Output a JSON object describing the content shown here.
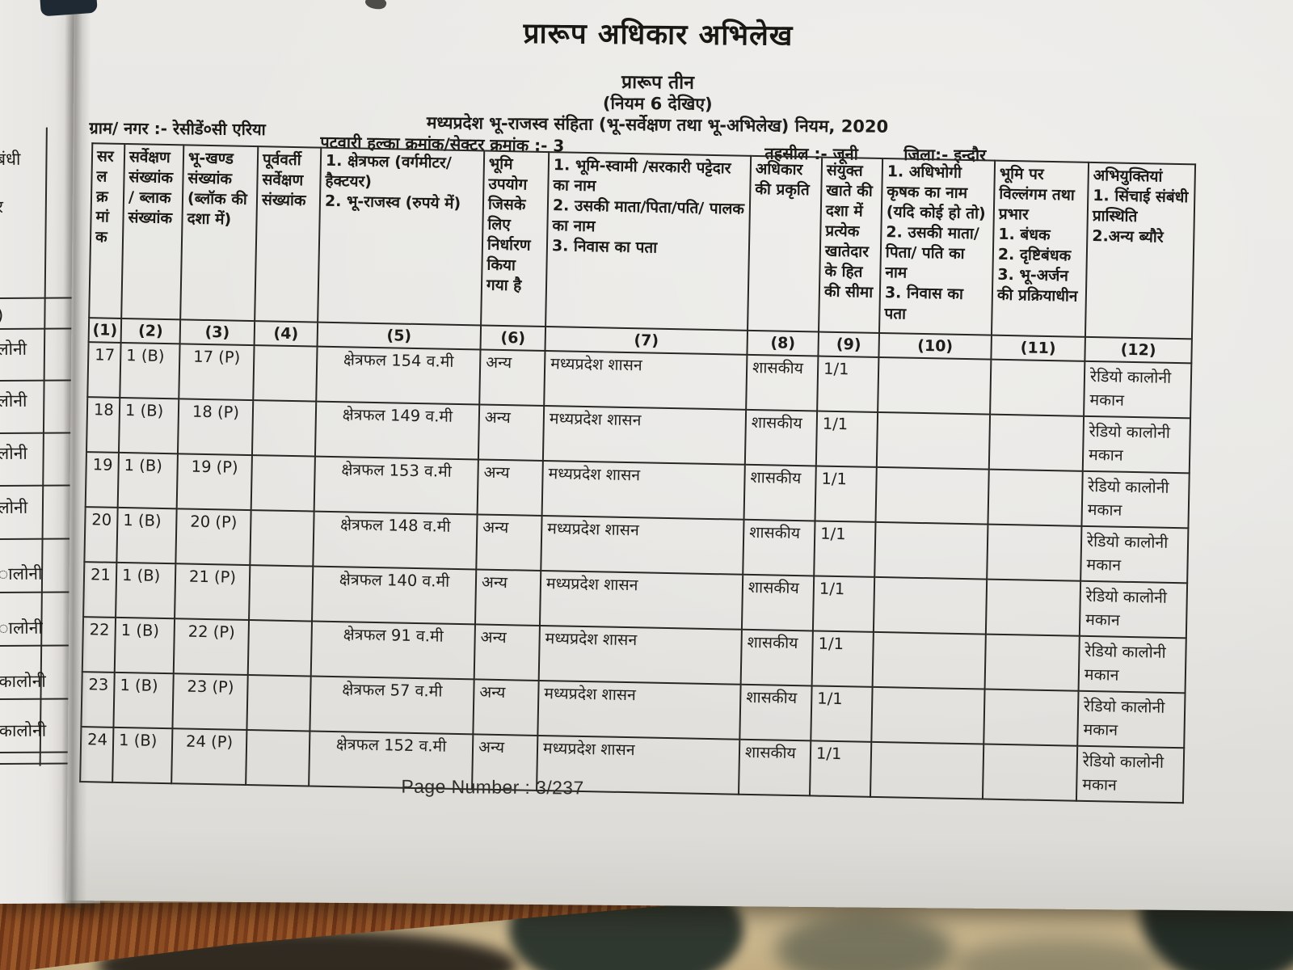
{
  "document": {
    "title": "प्रारूप अधिकार अभिलेख",
    "form_name": "प्रारूप तीन",
    "rule_ref": "(नियम 6 देखिए)",
    "act_line": "मध्यप्रदेश भू-राजस्व संहिता (भू-सर्वेक्षण तथा भू-अभिलेख) नियम, 2020",
    "village": "ग्राम/ नगर :- रेसीडें०सी एरिया",
    "patwari": "पटवारी हल्का क्रमांक/सेक्टर क्रमांक :- 3",
    "tehsil": "तहसील :- जूनी",
    "district": "जिला:- इन्दौर",
    "page_number": "Page Number : 3/237"
  },
  "table": {
    "headers": [
      "सरल क्रमांक",
      "सर्वेक्षण संख्यांक/ ब्लाक संख्यांक",
      "भू-खण्ड संख्यांक (ब्लॉक की दशा में)",
      "पूर्ववर्ती सर्वेक्षण संख्यांक",
      "1. क्षेत्रफल (वर्गमीटर/ हैक्टयर)\n2. भू-राजस्व (रुपये में)",
      "भूमि उपयोग जिसके लिए निर्धारण किया गया है",
      "1. भूमि-स्वामी /सरकारी पट्टेदार  का नाम\n2. उसकी माता/पिता/पति/ पालक का नाम\n3. निवास का पता",
      "अधिकार की प्रकृति",
      "संयुक्त खाते की दशा में प्रत्येक खातेदार के हित की सीमा",
      "1. अधिभोगी कृषक का नाम (यदि कोई हो तो)\n2. उसकी माता/ पिता/ पति का नाम\n3. निवास का पता",
      "भूमि पर विल्लंगम तथा प्रभार\n1. बंधक\n2. दृष्टिबंधक\n3. भू-अर्जन की प्रक्रियाधीन",
      "अभियुक्तियां\n1. सिंचाई संबंधी प्रास्थिति\n2.अन्य ब्यौरे"
    ],
    "column_numbers": [
      "(1)",
      "(2)",
      "(3)",
      "(4)",
      "(5)",
      "(6)",
      "(7)",
      "(8)",
      "(9)",
      "(10)",
      "(11)",
      "(12)"
    ],
    "rows": [
      [
        "17",
        "1 (B)",
        "17 (P)",
        "",
        "क्षेत्रफल 154 व.मी",
        "अन्य",
        "मध्यप्रदेश शासन",
        "शासकीय",
        "1/1",
        "",
        "",
        "रेडियो कालोनी मकान"
      ],
      [
        "18",
        "1 (B)",
        "18 (P)",
        "",
        "क्षेत्रफल 149 व.मी",
        "अन्य",
        "मध्यप्रदेश शासन",
        "शासकीय",
        "1/1",
        "",
        "",
        "रेडियो कालोनी मकान"
      ],
      [
        "19",
        "1 (B)",
        "19 (P)",
        "",
        "क्षेत्रफल 153 व.मी",
        "अन्य",
        "मध्यप्रदेश शासन",
        "शासकीय",
        "1/1",
        "",
        "",
        "रेडियो कालोनी मकान"
      ],
      [
        "20",
        "1 (B)",
        "20 (P)",
        "",
        "क्षेत्रफल 148 व.मी",
        "अन्य",
        "मध्यप्रदेश शासन",
        "शासकीय",
        "1/1",
        "",
        "",
        "रेडियो कालोनी मकान"
      ],
      [
        "21",
        "1 (B)",
        "21 (P)",
        "",
        "क्षेत्रफल 140 व.मी",
        "अन्य",
        "मध्यप्रदेश शासन",
        "शासकीय",
        "1/1",
        "",
        "",
        "रेडियो कालोनी मकान"
      ],
      [
        "22",
        "1 (B)",
        "22 (P)",
        "",
        "क्षेत्रफल 91 व.मी",
        "अन्य",
        "मध्यप्रदेश शासन",
        "शासकीय",
        "1/1",
        "",
        "",
        "रेडियो कालोनी मकान"
      ],
      [
        "23",
        "1 (B)",
        "23 (P)",
        "",
        "क्षेत्रफल 57 व.मी",
        "अन्य",
        "मध्यप्रदेश शासन",
        "शासकीय",
        "1/1",
        "",
        "",
        "रेडियो कालोनी मकान"
      ],
      [
        "24",
        "1 (B)",
        "24 (P)",
        "",
        "क्षेत्रफल 152 व.मी",
        "अन्य",
        "मध्यप्रदेश शासन",
        "शासकीय",
        "1/1",
        "",
        "",
        "रेडियो कालोनी मकान"
      ]
    ]
  },
  "underlying_page": {
    "fragments": [
      "बंधी",
      "र",
      ")",
      "लोनी",
      "लोनी",
      "लोनी",
      "लोनी",
      "ालोनी",
      "ालोनी",
      "कालोनी",
      "कालोनी"
    ]
  }
}
